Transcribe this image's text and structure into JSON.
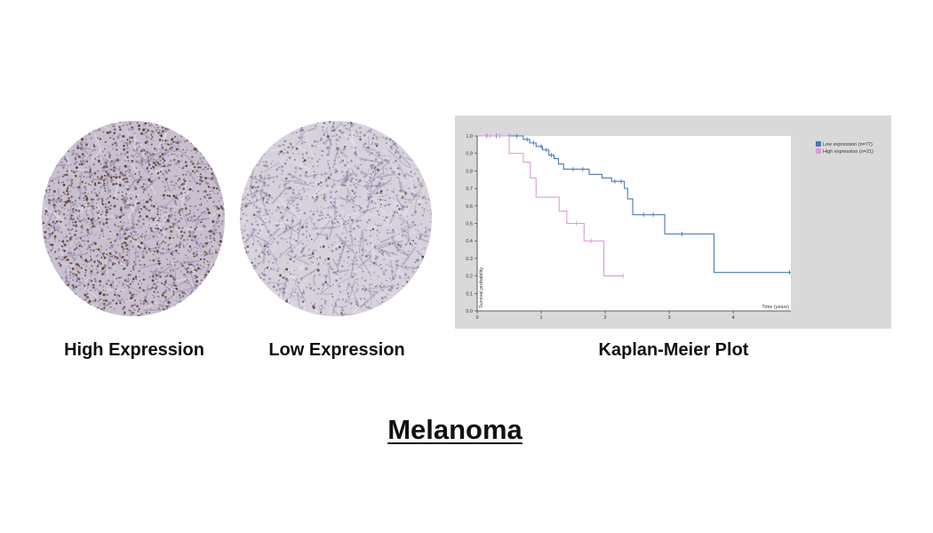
{
  "title": "Melanoma",
  "panels": {
    "high": {
      "caption": "High Expression"
    },
    "low": {
      "caption": "Low Expression"
    },
    "km": {
      "caption": "Kaplan-Meier Plot"
    }
  },
  "colors": {
    "low_series": "#4a78b8",
    "high_series": "#dd99dd",
    "panel_bg": "#d9d9d9",
    "tissue_high_bg": "#c8c0cf",
    "tissue_low_bg": "#d6d1da",
    "stain_brown": "#5a3a28",
    "stain_purple": "#8f85aa"
  },
  "chart_data": {
    "type": "line",
    "xlabel": "Time (years)",
    "ylabel": "Survival probability",
    "xlim": [
      0,
      4.9
    ],
    "ylim": [
      0,
      1.0
    ],
    "xticks": [
      "0",
      "1",
      "2",
      "3",
      "4"
    ],
    "yticks": [
      "0.0",
      "0.1",
      "0.2",
      "0.3",
      "0.4",
      "0.5",
      "0.6",
      "0.7",
      "0.8",
      "0.9",
      "1.0"
    ],
    "legend_position": "top-right",
    "series": [
      {
        "name": "Low expression (n=77)",
        "color": "#4a78b8",
        "steps": [
          [
            0,
            1.0
          ],
          [
            0.72,
            0.98
          ],
          [
            0.82,
            0.96
          ],
          [
            0.92,
            0.94
          ],
          [
            1.02,
            0.92
          ],
          [
            1.12,
            0.89
          ],
          [
            1.2,
            0.87
          ],
          [
            1.27,
            0.84
          ],
          [
            1.35,
            0.81
          ],
          [
            1.75,
            0.78
          ],
          [
            1.95,
            0.76
          ],
          [
            2.1,
            0.74
          ],
          [
            2.3,
            0.7
          ],
          [
            2.35,
            0.64
          ],
          [
            2.43,
            0.55
          ],
          [
            2.93,
            0.44
          ],
          [
            3.7,
            0.22
          ],
          [
            4.9,
            0.22
          ]
        ],
        "censored": [
          [
            0.15,
            1.0
          ],
          [
            0.3,
            1.0
          ],
          [
            0.5,
            1.0
          ],
          [
            0.62,
            1.0
          ],
          [
            0.78,
            0.98
          ],
          [
            0.88,
            0.96
          ],
          [
            1.0,
            0.94
          ],
          [
            1.08,
            0.92
          ],
          [
            1.16,
            0.89
          ],
          [
            1.5,
            0.81
          ],
          [
            1.65,
            0.81
          ],
          [
            2.15,
            0.74
          ],
          [
            2.25,
            0.74
          ],
          [
            2.6,
            0.55
          ],
          [
            2.75,
            0.55
          ],
          [
            3.2,
            0.44
          ],
          [
            4.88,
            0.22
          ]
        ]
      },
      {
        "name": "High expression (n=21)",
        "color": "#dd99dd",
        "steps": [
          [
            0,
            1.0
          ],
          [
            0.5,
            0.9
          ],
          [
            0.72,
            0.85
          ],
          [
            0.83,
            0.76
          ],
          [
            0.92,
            0.65
          ],
          [
            1.28,
            0.57
          ],
          [
            1.4,
            0.5
          ],
          [
            1.67,
            0.4
          ],
          [
            1.98,
            0.2
          ],
          [
            2.28,
            0.2
          ]
        ],
        "censored": [
          [
            0.2,
            1.0
          ],
          [
            0.35,
            1.0
          ],
          [
            1.55,
            0.5
          ],
          [
            1.78,
            0.4
          ],
          [
            2.28,
            0.2
          ]
        ]
      }
    ]
  }
}
